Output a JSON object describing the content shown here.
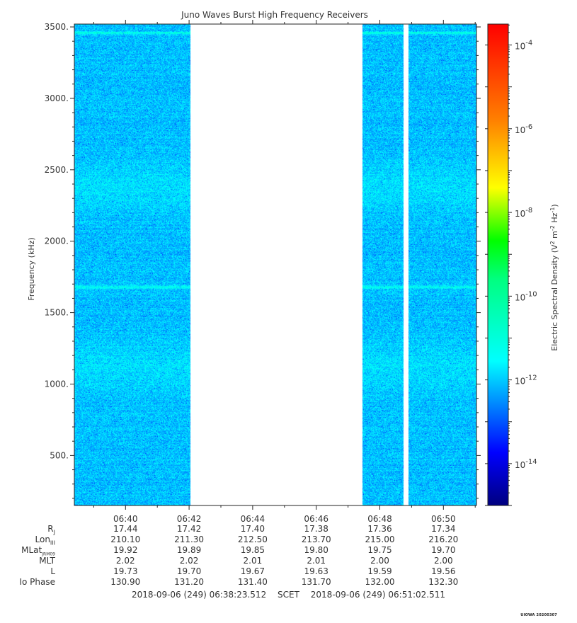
{
  "chart_data": {
    "type": "heatmap",
    "title": "Juno Waves Burst High Frequency Receivers",
    "ylabel": "Frequency (kHz)",
    "ylim": [
      150,
      3520
    ],
    "yticks": [
      "500.",
      "1000.",
      "1500.",
      "2000.",
      "2500.",
      "3000.",
      "3500."
    ],
    "xtick_labels": [
      "06:40",
      "06:42",
      "06:44",
      "06:46",
      "06:48",
      "06:50"
    ],
    "xlim_minutes": [
      38.39,
      51.04
    ],
    "data_segments": [
      {
        "start": "06:38:23",
        "end": "06:42:02"
      },
      {
        "start": "06:47:26",
        "end": "06:48:44"
      },
      {
        "start": "06:48:53",
        "end": "06:51:02"
      }
    ],
    "horizontal_bands_khz": [
      {
        "freq": 1680,
        "note": "bright narrowband line"
      },
      {
        "freq": 3460,
        "note": "bright narrowband line"
      },
      {
        "freq": 2380,
        "note": "enhanced band"
      },
      {
        "freq": 1120,
        "note": "enhanced band"
      }
    ],
    "colorbar": {
      "label": "Electric Spectral Density (V² m⁻² Hz⁻¹)",
      "scale": "log",
      "range_exponent": [
        -15,
        -3.5
      ],
      "tick_exponents": [
        "-4",
        "-6",
        "-8",
        "-10",
        "-12",
        "-14"
      ]
    },
    "background_level_exponent": -12
  },
  "ephemeris": {
    "rows": [
      {
        "label": "Rj",
        "values": [
          "17.44",
          "17.42",
          "17.40",
          "17.38",
          "17.36",
          "17.34"
        ]
      },
      {
        "label": "LonIII",
        "values": [
          "210.10",
          "211.30",
          "212.50",
          "213.70",
          "215.00",
          "216.20"
        ]
      },
      {
        "label": "MLatJRM09",
        "values": [
          "19.92",
          "19.89",
          "19.85",
          "19.80",
          "19.75",
          "19.70"
        ]
      },
      {
        "label": "MLT",
        "values": [
          "2.02",
          "2.02",
          "2.01",
          "2.01",
          "2.00",
          "2.00"
        ]
      },
      {
        "label": "L",
        "values": [
          "19.73",
          "19.70",
          "19.67",
          "19.63",
          "19.59",
          "19.56"
        ]
      },
      {
        "label": "Io Phase",
        "values": [
          "130.90",
          "131.20",
          "131.40",
          "131.70",
          "132.00",
          "132.30"
        ]
      }
    ]
  },
  "footer": {
    "start": "2018-09-06 (249) 06:38:23.512",
    "middle": "SCET",
    "end": "2018-09-06 (249) 06:51:02.511"
  },
  "credit": "UIOWA 20200307"
}
